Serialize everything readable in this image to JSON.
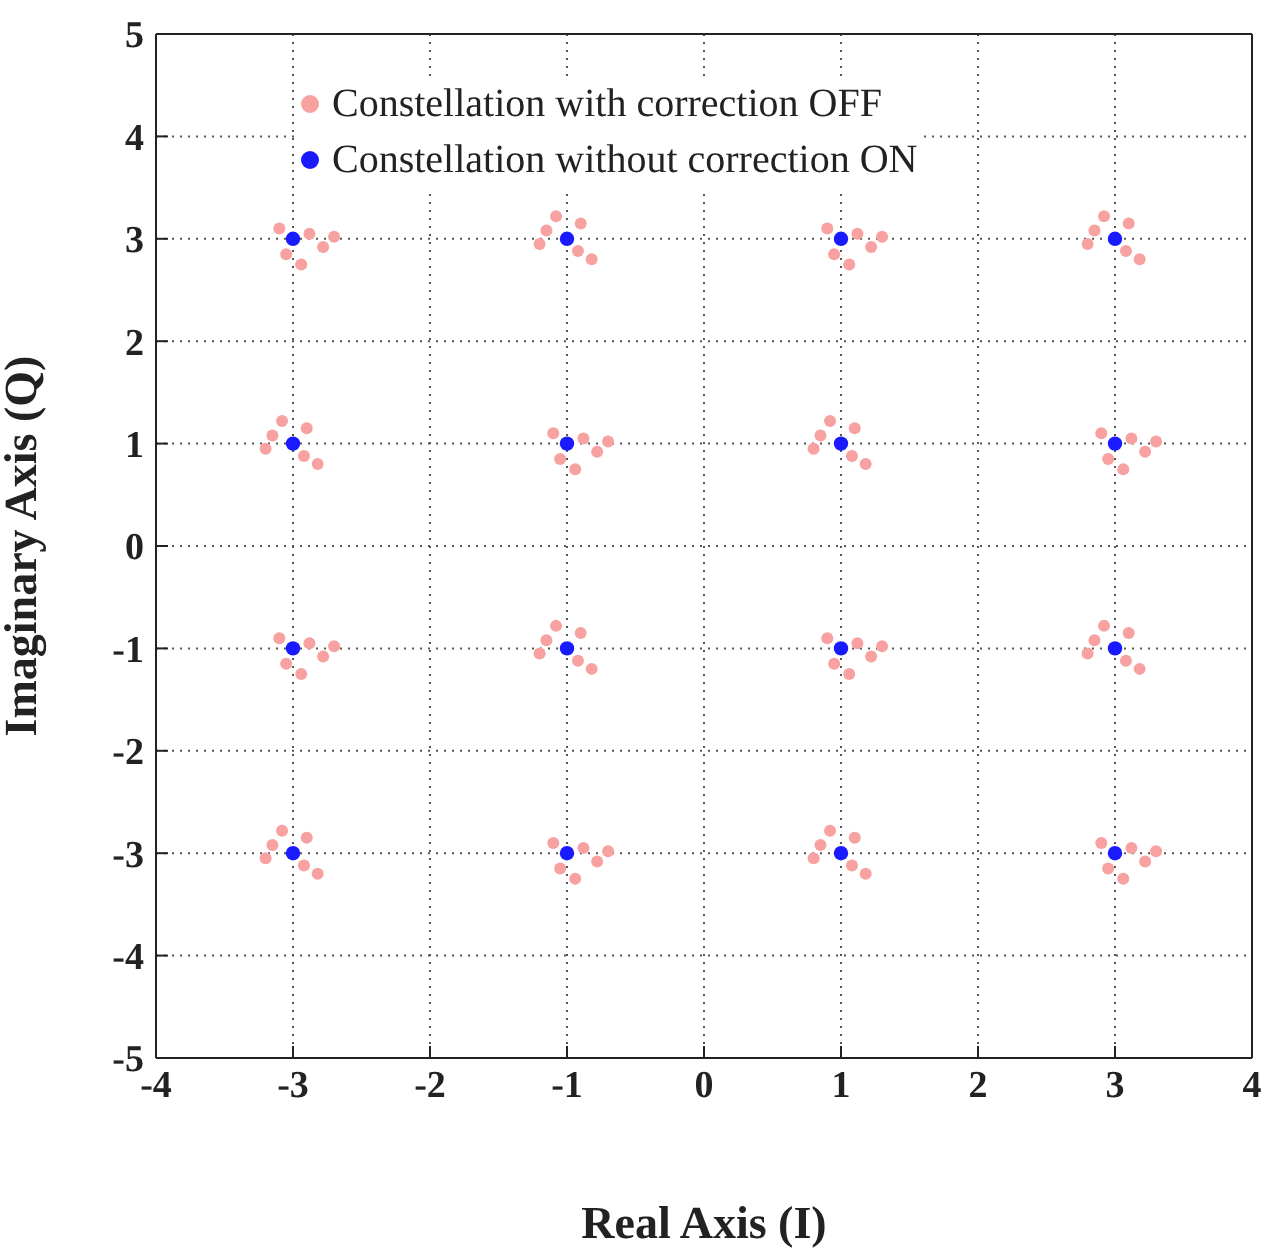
{
  "chart_data": {
    "type": "scatter",
    "xlabel": "Real Axis (I)",
    "ylabel": "Imaginary Axis (Q)",
    "xlim": [
      -4,
      4
    ],
    "ylim": [
      -5,
      5
    ],
    "xticks": [
      -4,
      -3,
      -2,
      -1,
      0,
      1,
      2,
      3,
      4
    ],
    "yticks": [
      -5,
      -4,
      -3,
      -2,
      -1,
      0,
      1,
      2,
      3,
      4,
      5
    ],
    "grid": true,
    "legend": "top left",
    "marker": "circle",
    "series": [
      {
        "name": "Constellation with correction OFF",
        "color": "#f7a1a1",
        "x": [
          -2.88,
          -3.1,
          -2.78,
          -3.05,
          -2.7,
          -2.94,
          -1.15,
          -0.9,
          -1.2,
          -0.92,
          -1.08,
          -0.82,
          1.12,
          0.9,
          1.22,
          0.95,
          1.3,
          1.06,
          2.85,
          3.1,
          2.8,
          3.08,
          2.92,
          3.18,
          -3.15,
          -2.9,
          -3.2,
          -2.92,
          -3.08,
          -2.82,
          -0.88,
          -1.1,
          -0.78,
          -1.05,
          -0.7,
          -0.94,
          0.85,
          1.1,
          0.8,
          1.08,
          0.92,
          1.18,
          3.12,
          2.9,
          3.22,
          2.95,
          3.3,
          3.06,
          -2.88,
          -3.1,
          -2.78,
          -3.05,
          -2.7,
          -2.94,
          -1.15,
          -0.9,
          -1.2,
          -0.92,
          -1.08,
          -0.82,
          1.12,
          0.9,
          1.22,
          0.95,
          1.3,
          1.06,
          2.85,
          3.1,
          2.8,
          3.08,
          2.92,
          3.18,
          -3.15,
          -2.9,
          -3.2,
          -2.92,
          -3.08,
          -2.82,
          -0.88,
          -1.1,
          -0.78,
          -1.05,
          -0.7,
          -0.94,
          0.85,
          1.1,
          0.8,
          1.08,
          0.92,
          1.18,
          3.12,
          2.9,
          3.22,
          2.95,
          3.3,
          3.06
        ],
        "values": [
          3.05,
          3.1,
          2.92,
          2.85,
          3.02,
          2.75,
          3.08,
          3.15,
          2.95,
          2.88,
          3.22,
          2.8,
          3.05,
          3.1,
          2.92,
          2.85,
          3.02,
          2.75,
          3.08,
          3.15,
          2.95,
          2.88,
          3.22,
          2.8,
          1.08,
          1.15,
          0.95,
          0.88,
          1.22,
          0.8,
          1.05,
          1.1,
          0.92,
          0.85,
          1.02,
          0.75,
          1.08,
          1.15,
          0.95,
          0.88,
          1.22,
          0.8,
          1.05,
          1.1,
          0.92,
          0.85,
          1.02,
          0.75,
          -0.95,
          -0.9,
          -1.08,
          -1.15,
          -0.98,
          -1.25,
          -0.92,
          -0.85,
          -1.05,
          -1.12,
          -0.78,
          -1.2,
          -0.95,
          -0.9,
          -1.08,
          -1.15,
          -0.98,
          -1.25,
          -0.92,
          -0.85,
          -1.05,
          -1.12,
          -0.78,
          -1.2,
          -2.92,
          -2.85,
          -3.05,
          -3.12,
          -2.78,
          -3.2,
          -2.95,
          -2.9,
          -3.08,
          -3.15,
          -2.98,
          -3.25,
          -2.92,
          -2.85,
          -3.05,
          -3.12,
          -2.78,
          -3.2,
          -2.95,
          -2.9,
          -3.08,
          -3.15,
          -2.98,
          -3.25
        ]
      },
      {
        "name": "Constellation without correction ON",
        "color": "#1a1aff",
        "x": [
          -3.0,
          -1.0,
          1.0,
          3.0,
          -3.0,
          -1.0,
          1.0,
          3.0,
          -3.0,
          -1.0,
          1.0,
          3.0,
          -3.0,
          -1.0,
          1.0,
          3.0
        ],
        "values": [
          3.0,
          3.0,
          3.0,
          3.0,
          1.0,
          1.0,
          1.0,
          1.0,
          -1.0,
          -1.0,
          -1.0,
          -1.0,
          -3.0,
          -3.0,
          -3.0,
          -3.0
        ]
      }
    ]
  }
}
